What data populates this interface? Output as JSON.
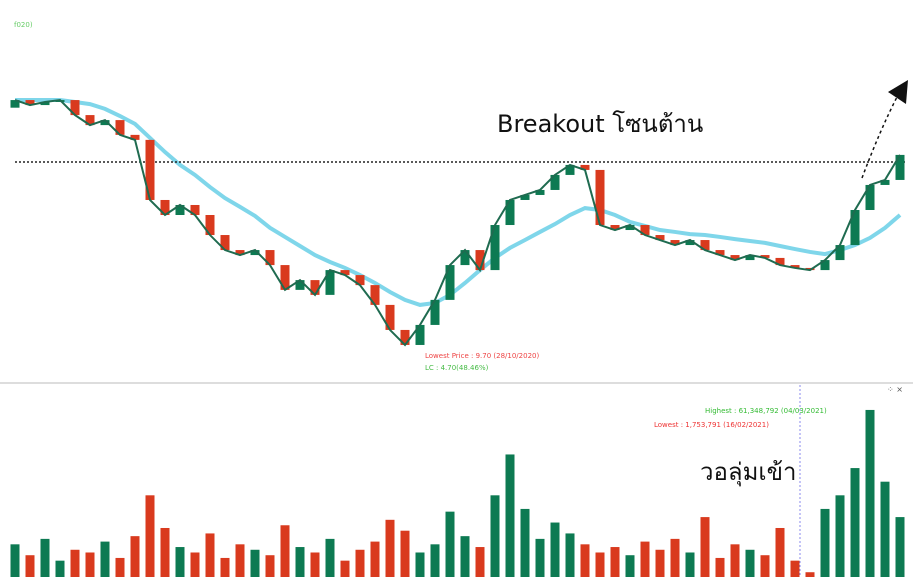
{
  "chart_data": [
    {
      "type": "candlestick",
      "corner_label": "f020)",
      "annotation": "Breakout โซนต้าน",
      "low_label": "Lowest Price : 9.70 (28/10/2020)",
      "lc_label": "LC : 4.70(48.46%)",
      "ylim": [
        9,
        22
      ],
      "resistance": 17.72,
      "up_color": "#0d7a52",
      "down_color": "#d93a1e",
      "open": [
        20.0,
        20.32,
        20.11,
        20.24,
        20.32,
        19.69,
        19.27,
        19.48,
        18.86,
        18.65,
        16.13,
        15.5,
        15.92,
        15.5,
        14.66,
        14.03,
        13.82,
        14.03,
        13.4,
        12.36,
        12.77,
        12.15,
        13.19,
        12.98,
        12.56,
        11.73,
        10.68,
        10.05,
        10.89,
        11.94,
        13.4,
        14.03,
        13.19,
        15.08,
        16.13,
        16.34,
        16.55,
        17.18,
        17.6,
        17.39,
        15.08,
        14.87,
        15.08,
        14.66,
        14.45,
        14.24,
        14.45,
        14.03,
        13.82,
        13.61,
        13.82,
        13.7,
        13.4,
        13.28,
        13.19,
        13.61,
        14.24,
        15.71,
        16.76,
        16.97
      ],
      "close": [
        20.32,
        20.11,
        20.24,
        20.32,
        19.69,
        19.27,
        19.48,
        18.86,
        18.65,
        16.13,
        15.5,
        15.92,
        15.5,
        14.66,
        14.03,
        13.82,
        14.03,
        13.4,
        12.36,
        12.77,
        12.15,
        13.19,
        12.98,
        12.56,
        11.73,
        10.68,
        10.05,
        10.89,
        11.94,
        13.4,
        14.03,
        13.19,
        15.08,
        16.13,
        16.34,
        16.55,
        17.18,
        17.6,
        17.39,
        15.08,
        14.87,
        15.08,
        14.66,
        14.45,
        14.24,
        14.45,
        14.03,
        13.82,
        13.61,
        13.82,
        13.7,
        13.4,
        13.28,
        13.19,
        13.61,
        14.24,
        15.71,
        16.76,
        16.97,
        18.02
      ],
      "ma": {
        "color": "#7fd6ea",
        "values": [
          20.32,
          20.32,
          20.32,
          20.32,
          20.24,
          20.15,
          19.95,
          19.65,
          19.32,
          18.73,
          18.14,
          17.6,
          17.18,
          16.67,
          16.21,
          15.84,
          15.46,
          14.96,
          14.58,
          14.2,
          13.82,
          13.53,
          13.28,
          12.98,
          12.65,
          12.27,
          11.94,
          11.73,
          11.81,
          12.15,
          12.65,
          13.19,
          13.7,
          14.12,
          14.45,
          14.79,
          15.12,
          15.5,
          15.79,
          15.71,
          15.5,
          15.21,
          15.04,
          14.87,
          14.79,
          14.7,
          14.66,
          14.58,
          14.49,
          14.41,
          14.33,
          14.2,
          14.07,
          13.95,
          13.86,
          14.03,
          14.24,
          14.54,
          14.96,
          15.5
        ]
      }
    },
    {
      "type": "bar",
      "annotation": "วอลุ่มเข้า",
      "high_label": "Highest : 61,348,792 (04/03/2021)",
      "low_label": "Lowest : 1,753,791 (16/02/2021)",
      "ylim": [
        0,
        65000000
      ],
      "values": [
        12000000,
        8000000,
        14000000,
        6000000,
        10000000,
        9000000,
        13000000,
        7000000,
        15000000,
        30000000,
        18000000,
        11000000,
        9000000,
        16000000,
        7000000,
        12000000,
        10000000,
        8000000,
        19000000,
        11000000,
        9000000,
        14000000,
        6000000,
        10000000,
        13000000,
        21000000,
        17000000,
        9000000,
        12000000,
        24000000,
        15000000,
        11000000,
        30000000,
        45000000,
        25000000,
        14000000,
        20000000,
        16000000,
        12000000,
        9000000,
        11000000,
        8000000,
        13000000,
        10000000,
        14000000,
        9000000,
        22000000,
        7000000,
        12000000,
        10000000,
        8000000,
        18000000,
        6000000,
        1753791,
        25000000,
        30000000,
        40000000,
        61348792,
        35000000,
        22000000
      ]
    }
  ]
}
